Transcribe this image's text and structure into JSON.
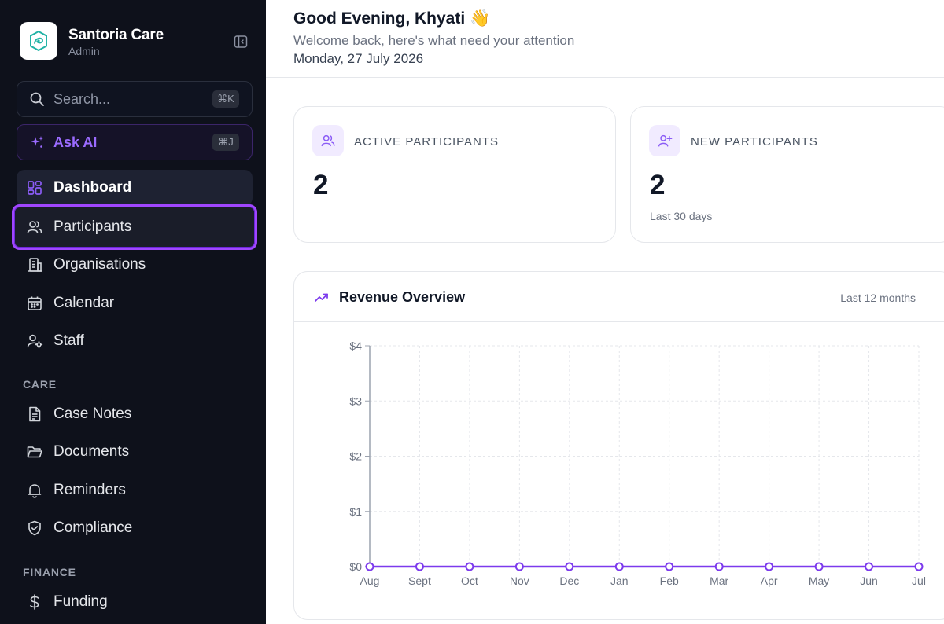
{
  "sidebar": {
    "brand_name": "Santoria Care",
    "brand_role": "Admin",
    "search_label": "Search...",
    "search_shortcut": "⌘K",
    "ask_ai_label": "Ask AI",
    "ask_ai_shortcut": "⌘J",
    "items": [
      {
        "label": "Dashboard",
        "icon": "dashboard-icon"
      },
      {
        "label": "Participants",
        "icon": "users-icon"
      },
      {
        "label": "Organisations",
        "icon": "building-icon"
      },
      {
        "label": "Calendar",
        "icon": "calendar-icon"
      },
      {
        "label": "Staff",
        "icon": "staff-icon"
      }
    ],
    "care_label": "CARE",
    "care_items": [
      {
        "label": "Case Notes",
        "icon": "file-text-icon"
      },
      {
        "label": "Documents",
        "icon": "folder-icon"
      },
      {
        "label": "Reminders",
        "icon": "bell-icon"
      },
      {
        "label": "Compliance",
        "icon": "shield-check-icon"
      }
    ],
    "finance_label": "FINANCE",
    "finance_items": [
      {
        "label": "Funding",
        "icon": "dollar-icon"
      }
    ]
  },
  "header": {
    "greeting": "Good Evening, Khyati",
    "wave": "👋",
    "subtitle": "Welcome back, here's what need your attention",
    "date": "Monday, 27 July 2026"
  },
  "stats": {
    "active": {
      "title": "ACTIVE PARTICIPANTS",
      "value": "2"
    },
    "new": {
      "title": "NEW PARTICIPANTS",
      "value": "2",
      "sub": "Last 30 days"
    }
  },
  "revenue": {
    "title": "Revenue Overview",
    "range": "Last 12 months"
  },
  "colors": {
    "accent": "#7c3aed",
    "sidebar_bg": "#0e111b",
    "highlight": "#a046ff"
  },
  "chart_data": {
    "type": "line",
    "categories": [
      "Aug",
      "Sept",
      "Oct",
      "Nov",
      "Dec",
      "Jan",
      "Feb",
      "Mar",
      "Apr",
      "May",
      "Jun",
      "Jul"
    ],
    "series": [
      {
        "values": [
          0,
          0,
          0,
          0,
          0,
          0,
          0,
          0,
          0,
          0,
          0,
          0
        ]
      }
    ],
    "y_ticks": [
      "$0",
      "$1",
      "$2",
      "$3",
      "$4"
    ],
    "ylim": [
      0,
      4
    ],
    "grid": true,
    "color": "#7c3aed"
  }
}
